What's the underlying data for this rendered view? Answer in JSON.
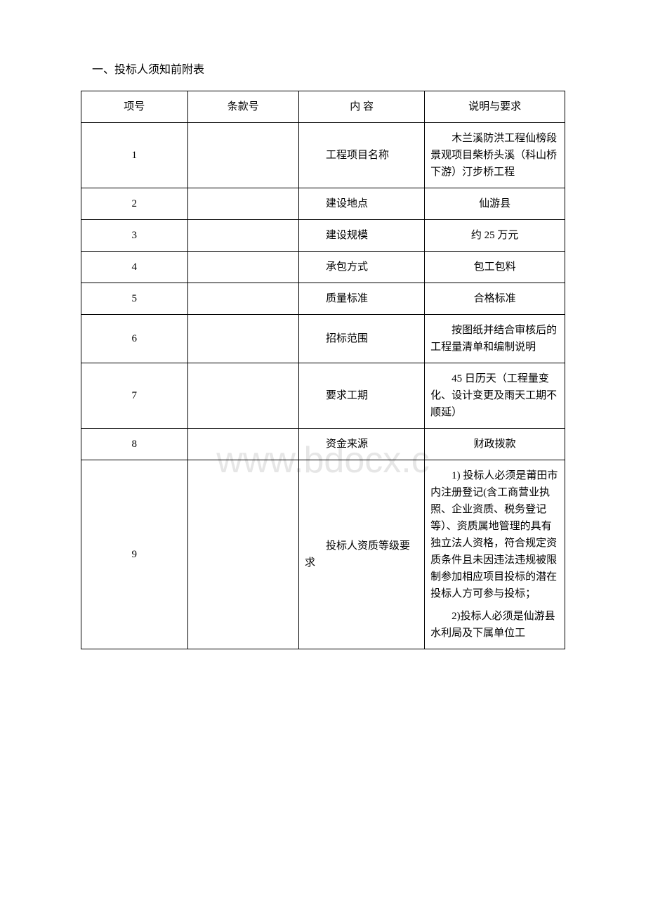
{
  "page": {
    "title": "一、投标人须知前附表",
    "watermark": "www.bdocx.c",
    "background_color": "#ffffff",
    "text_color": "#000000",
    "border_color": "#000000",
    "watermark_color": "rgba(200, 200, 200, 0.45)"
  },
  "table": {
    "columns": [
      "项号",
      "条款号",
      "内  容",
      "说明与要求"
    ],
    "column_widths": [
      "22%",
      "23%",
      "26%",
      "29%"
    ],
    "rows": [
      {
        "num": "1",
        "clause": "",
        "content": "工程项目名称",
        "desc": "木兰溪防洪工程仙榜段景观项目柴桥头溪（科山桥下游）汀步桥工程"
      },
      {
        "num": "2",
        "clause": "",
        "content": "建设地点",
        "desc": "仙游县",
        "desc_center": true
      },
      {
        "num": "3",
        "clause": "",
        "content": "建设规模",
        "desc": "约 25 万元",
        "desc_center": true
      },
      {
        "num": "4",
        "clause": "",
        "content": "承包方式",
        "desc": "包工包料",
        "desc_center": true
      },
      {
        "num": "5",
        "clause": "",
        "content": "质量标准",
        "desc": "合格标准",
        "desc_center": true
      },
      {
        "num": "6",
        "clause": "",
        "content": "招标范围",
        "desc": "按图纸并结合审核后的工程量清单和编制说明"
      },
      {
        "num": "7",
        "clause": "",
        "content": "要求工期",
        "desc": "45 日历天（工程量变化、设计变更及雨天工期不顺延）"
      },
      {
        "num": "8",
        "clause": "",
        "content": "资金来源",
        "desc": "财政拨款",
        "desc_center": true
      },
      {
        "num": "9",
        "clause": "",
        "content": "投标人资质等级要求",
        "desc_parts": [
          "1) 投标人必须是莆田市内注册登记(含工商营业执照、企业资质、税务登记等）、资质属地管理的具有独立法人资格，符合规定资质条件且未因违法违规被限制参加相应项目投标的潜在投标人方可参与投标；",
          "2)投标人必须是仙游县水利局及下属单位工"
        ]
      }
    ]
  }
}
